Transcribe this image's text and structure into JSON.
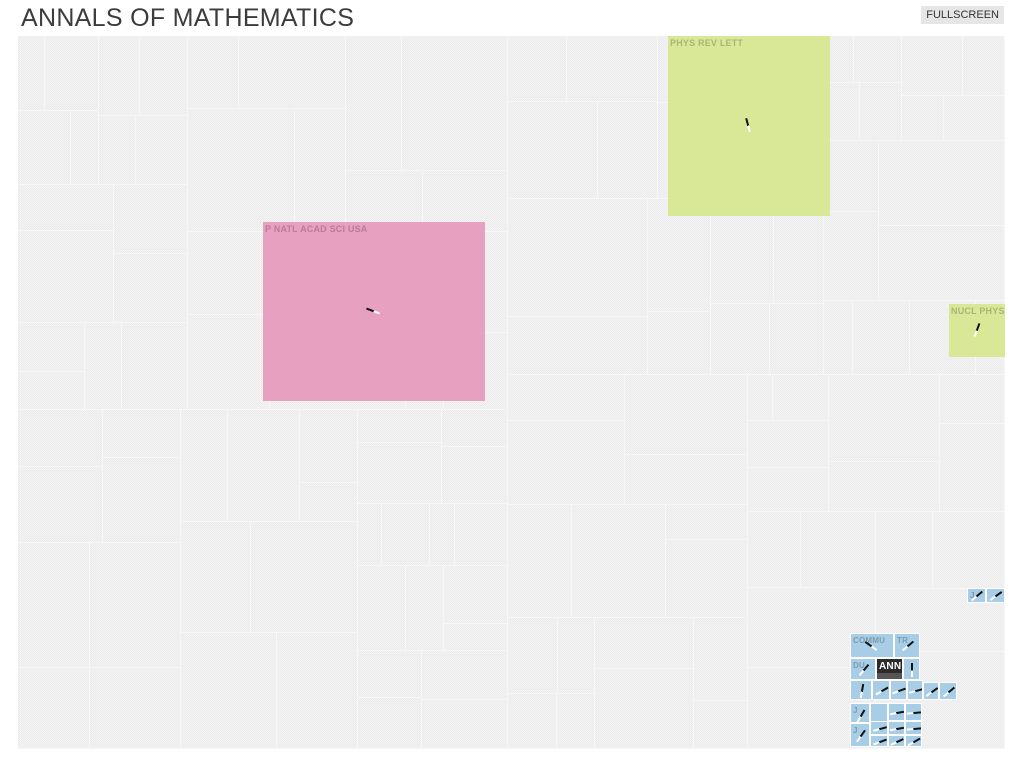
{
  "header": {
    "title": "ANNALS OF MATHEMATICS",
    "fullscreen_label": "FULLSCREEN"
  },
  "colors": {
    "background": "#ececec",
    "pink": "#e8a0c0",
    "green": "#d8e896",
    "blue": "#a8cde6",
    "highlight": "#2b2b2b"
  },
  "icons": {
    "needle": "needle-icon"
  },
  "tiles": [
    {
      "label": "PHYS REV LETT",
      "color": "green"
    },
    {
      "label": "P NATL ACAD SCI USA",
      "color": "pink"
    },
    {
      "label": "NUCL PHYS",
      "color": "green"
    },
    {
      "label": "COMMU",
      "color": "blue"
    },
    {
      "label": "TR",
      "color": "blue"
    },
    {
      "label": "DU",
      "color": "blue"
    },
    {
      "label": "ANN",
      "color": "highlight"
    },
    {
      "label": "J",
      "color": "blue"
    },
    {
      "label": "J",
      "color": "blue"
    },
    {
      "label": "J",
      "color": "blue"
    }
  ]
}
